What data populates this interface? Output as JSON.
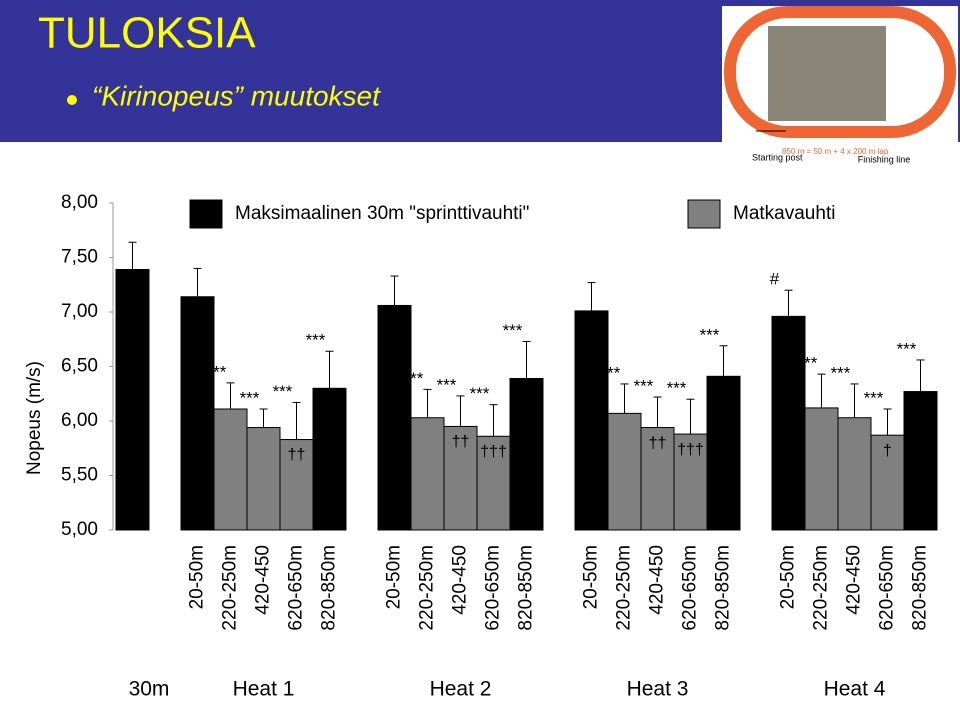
{
  "header": {
    "title": "TULOKSIA",
    "bullet": "“Kirinopeus” muutokset"
  },
  "photo": {
    "start_label": "Starting post",
    "formula": "850 m = 50 m + 4 x 200 m lap",
    "finish_label": "Finishing line"
  },
  "chart_data": {
    "type": "bar",
    "y_label": "Nopeus (m/s)",
    "ylim": [
      5,
      8
    ],
    "yticks": [
      {
        "value": 5,
        "label": "5,00"
      },
      {
        "value": 5.5,
        "label": "5,50"
      },
      {
        "value": 6,
        "label": "6,00"
      },
      {
        "value": 6.5,
        "label": "6,50"
      },
      {
        "value": 7,
        "label": "7,00"
      },
      {
        "value": 7.5,
        "label": "7,50"
      },
      {
        "value": 8,
        "label": "8,00"
      }
    ],
    "groups": [
      {
        "name": "30m",
        "categories": [
          null
        ]
      },
      {
        "name": "Heat 1",
        "categories": [
          "20-50m",
          "220-250m",
          "420-450",
          "620-650m",
          "820-850m"
        ]
      },
      {
        "name": "Heat 2",
        "categories": [
          "20-50m",
          "220-250m",
          "420-450",
          "620-650m",
          "820-850m"
        ]
      },
      {
        "name": "Heat 3",
        "categories": [
          "20-50m",
          "220-250m",
          "420-450",
          "620-650m",
          "820-850m"
        ]
      },
      {
        "name": "Heat 4",
        "categories": [
          "20-50m",
          "220-250m",
          "420-450",
          "620-650m",
          "820-850m"
        ]
      }
    ],
    "series": [
      {
        "name": "Maksimaalinen 30m \"sprinttivauhti\"",
        "color": "#000000",
        "values": [
          7.39,
          7.14,
          null,
          null,
          null,
          6.3,
          7.06,
          null,
          null,
          null,
          6.39,
          7.01,
          null,
          null,
          null,
          6.41,
          6.96,
          null,
          null,
          null,
          6.27
        ],
        "errors": [
          0.25,
          0.26,
          null,
          null,
          null,
          0.34,
          0.27,
          null,
          null,
          null,
          0.34,
          0.26,
          null,
          null,
          null,
          0.28,
          0.24,
          null,
          null,
          null,
          0.29
        ]
      },
      {
        "name": "Matkavauhti",
        "color": "#808080",
        "values": [
          null,
          null,
          6.11,
          5.94,
          5.83,
          null,
          null,
          6.03,
          5.95,
          5.86,
          null,
          null,
          6.07,
          5.94,
          5.88,
          null,
          null,
          6.12,
          6.03,
          5.87,
          null
        ],
        "errors": [
          null,
          null,
          0.24,
          0.17,
          0.34,
          null,
          null,
          0.26,
          0.28,
          0.29,
          null,
          null,
          0.27,
          0.28,
          0.32,
          null,
          null,
          0.31,
          0.31,
          0.24,
          null
        ]
      }
    ],
    "annotations_above": [
      null,
      null,
      "***",
      "***",
      "***",
      "***",
      null,
      "***",
      "***",
      "***",
      "***",
      null,
      "***",
      "***",
      "***",
      "***",
      "#",
      "***",
      "***",
      "***",
      "***"
    ],
    "annotations_inside": [
      null,
      null,
      null,
      null,
      "††",
      null,
      null,
      null,
      "††",
      "†††",
      null,
      null,
      null,
      "††",
      "†††",
      null,
      null,
      null,
      null,
      "†",
      null
    ]
  }
}
